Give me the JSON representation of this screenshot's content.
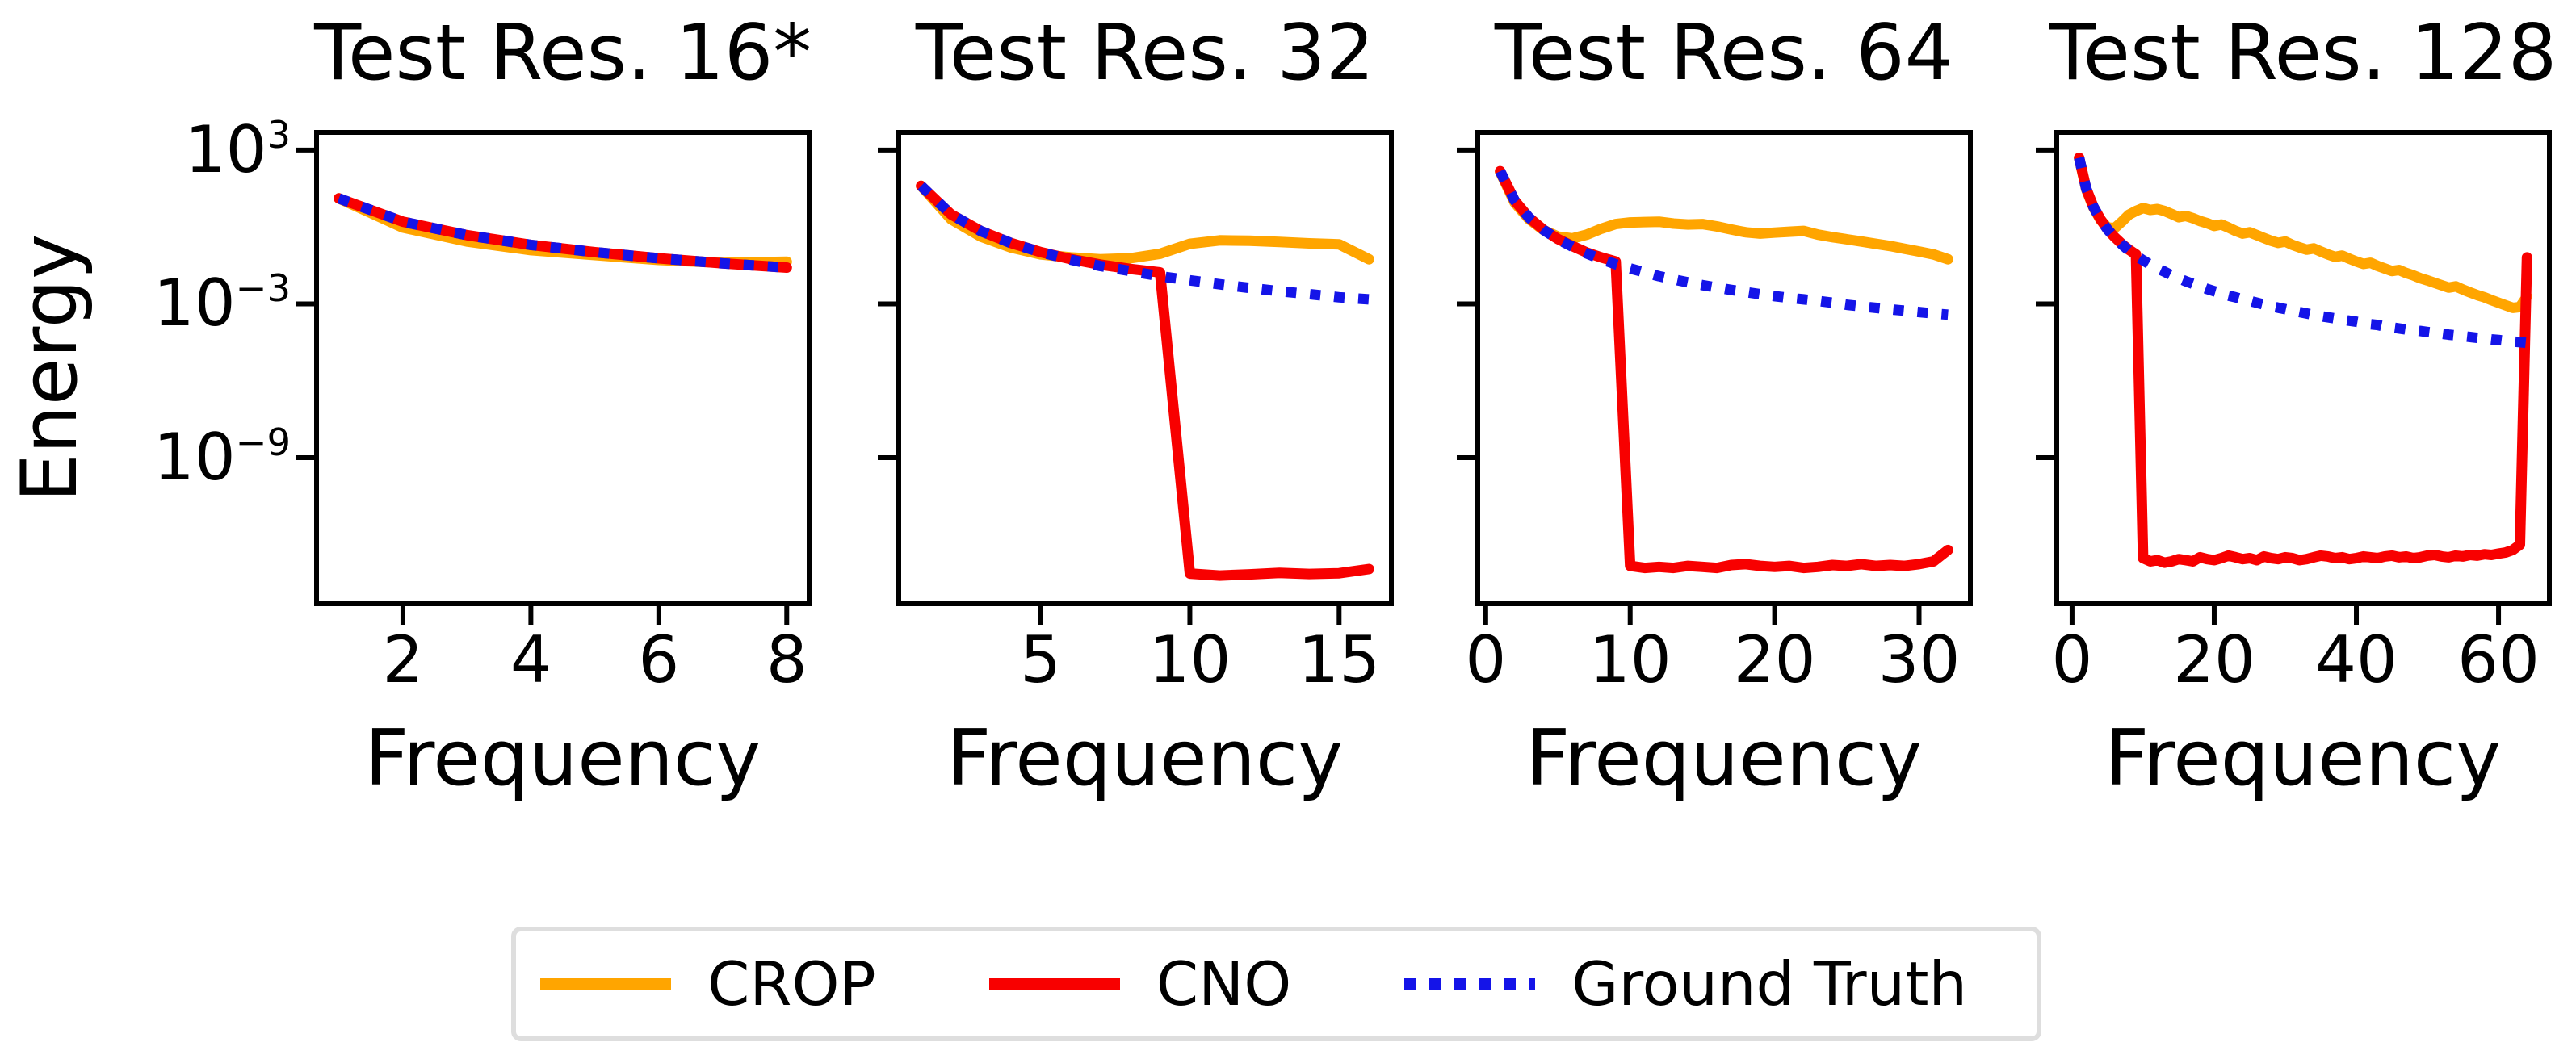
{
  "figure": {
    "ylabel": "Energy",
    "xlabel": "Frequency",
    "background_color": "#ffffff",
    "axis_color": "#000000"
  },
  "colors": {
    "crop": "#ffa500",
    "cno": "#f80000",
    "ground_truth": "#1414e8",
    "legend_border": "#dedede"
  },
  "legend": {
    "position": "lower center",
    "items": [
      {
        "label": "CROP",
        "color": "#ffa500",
        "dash": "solid"
      },
      {
        "label": "CNO",
        "color": "#f80000",
        "dash": "solid"
      },
      {
        "label": "Ground Truth",
        "color": "#1414e8",
        "dash": "dotted"
      }
    ]
  },
  "chart_data": [
    {
      "type": "line",
      "title": "Test Res. 16*",
      "xlabel": "Frequency",
      "ylabel": "Energy",
      "y_scale": "log",
      "grid": false,
      "xlim": [
        0.65,
        8.35
      ],
      "ylim_log10": [
        -14.7,
        3.69
      ],
      "xticks": [
        2,
        4,
        6,
        8
      ],
      "ytick_exponents": [
        3,
        -3,
        -9
      ],
      "x": [
        1,
        2,
        3,
        4,
        5,
        6,
        7,
        8
      ],
      "series": [
        {
          "name": "CROP",
          "style": "solid",
          "values": [
            13,
            0.95,
            0.27,
            0.125,
            0.08,
            0.052,
            0.04,
            0.044
          ]
        },
        {
          "name": "CNO",
          "style": "solid",
          "values": [
            13,
            1.6,
            0.48,
            0.2,
            0.104,
            0.06,
            0.038,
            0.026
          ]
        },
        {
          "name": "Ground Truth",
          "style": "dotted",
          "values": [
            13,
            1.6,
            0.48,
            0.2,
            0.104,
            0.06,
            0.038,
            0.026
          ]
        }
      ]
    },
    {
      "type": "line",
      "title": "Test Res. 32",
      "xlabel": "Frequency",
      "ylabel": "Energy",
      "y_scale": "log",
      "grid": false,
      "xlim": [
        0.25,
        16.75
      ],
      "ylim_log10": [
        -14.7,
        3.69
      ],
      "xticks": [
        5,
        10,
        15
      ],
      "ytick_exponents": [
        3,
        -3,
        -9
      ],
      "x": [
        1,
        2,
        3,
        4,
        5,
        6,
        7,
        8,
        9,
        10,
        11,
        12,
        13,
        14,
        15,
        16
      ],
      "series": [
        {
          "name": "CROP",
          "style": "solid",
          "values": [
            40,
            2.0,
            0.42,
            0.16,
            0.085,
            0.065,
            0.055,
            0.06,
            0.09,
            0.22,
            0.3,
            0.29,
            0.26,
            0.23,
            0.21,
            0.055
          ]
        },
        {
          "name": "CNO",
          "style": "solid",
          "values": [
            40,
            3.1,
            0.69,
            0.24,
            0.105,
            0.056,
            0.034,
            0.023,
            0.017,
            3e-14,
            2.5e-14,
            2.8e-14,
            3.2e-14,
            2.9e-14,
            3.1e-14,
            4.5e-14
          ]
        },
        {
          "name": "Ground Truth",
          "style": "dotted",
          "values": [
            40,
            3.1,
            0.69,
            0.237,
            0.103,
            0.053,
            0.03,
            0.019,
            0.012,
            0.0083,
            0.0058,
            0.0042,
            0.0031,
            0.0024,
            0.0018,
            0.0015
          ]
        }
      ]
    },
    {
      "type": "line",
      "title": "Test Res. 64",
      "xlabel": "Frequency",
      "ylabel": "Energy",
      "y_scale": "log",
      "grid": false,
      "xlim": [
        -0.55,
        33.55
      ],
      "ylim_log10": [
        -14.7,
        3.69
      ],
      "xticks": [
        0,
        10,
        20,
        30
      ],
      "ytick_exponents": [
        3,
        -3,
        -9
      ],
      "x": [
        1,
        2,
        3,
        4,
        5,
        6,
        7,
        8,
        9,
        10,
        11,
        12,
        13,
        14,
        15,
        16,
        17,
        18,
        19,
        20,
        21,
        22,
        23,
        24,
        25,
        26,
        27,
        28,
        29,
        30,
        31,
        32
      ],
      "series": [
        {
          "name": "CROP",
          "style": "solid",
          "values": [
            140,
            9.0,
            2.0,
            0.75,
            0.42,
            0.36,
            0.5,
            0.85,
            1.3,
            1.5,
            1.55,
            1.6,
            1.35,
            1.25,
            1.3,
            1.05,
            0.8,
            0.62,
            0.55,
            0.6,
            0.65,
            0.7,
            0.5,
            0.4,
            0.33,
            0.27,
            0.22,
            0.18,
            0.14,
            0.11,
            0.085,
            0.055
          ]
        },
        {
          "name": "CNO",
          "style": "solid",
          "values": [
            150,
            10.8,
            2.3,
            0.78,
            0.34,
            0.18,
            0.1,
            0.065,
            0.045,
            6e-14,
            5e-14,
            5.5e-14,
            5e-14,
            6e-14,
            5.5e-14,
            5e-14,
            6.5e-14,
            7e-14,
            6e-14,
            5.5e-14,
            6e-14,
            5e-14,
            5.5e-14,
            6.5e-14,
            6e-14,
            7e-14,
            6e-14,
            6.5e-14,
            6e-14,
            7e-14,
            9e-14,
            2.5e-13
          ]
        },
        {
          "name": "Ground Truth",
          "style": "dotted",
          "values": [
            150,
            10.8,
            2.3,
            0.77,
            0.33,
            0.17,
            0.092,
            0.055,
            0.035,
            0.024,
            0.017,
            0.012,
            0.009,
            0.0069,
            0.0054,
            0.0043,
            0.0035,
            0.0029,
            0.0024,
            0.002,
            0.0017,
            0.0015,
            0.0013,
            0.0011,
            0.00092,
            0.0008,
            0.0007,
            0.00061,
            0.00054,
            0.00048,
            0.00042,
            0.00038
          ]
        }
      ]
    },
    {
      "type": "line",
      "title": "Test Res. 128",
      "xlabel": "Frequency",
      "ylabel": "Energy",
      "y_scale": "log",
      "grid": false,
      "xlim": [
        -2.15,
        67.15
      ],
      "ylim_log10": [
        -14.7,
        3.69
      ],
      "xticks": [
        0,
        20,
        40,
        60
      ],
      "ytick_exponents": [
        3,
        -3,
        -9
      ],
      "x": [
        1,
        2,
        3,
        4,
        5,
        6,
        7,
        8,
        9,
        10,
        11,
        12,
        13,
        14,
        15,
        16,
        17,
        18,
        19,
        20,
        21,
        22,
        23,
        24,
        25,
        26,
        27,
        28,
        29,
        30,
        31,
        32,
        33,
        34,
        35,
        36,
        37,
        38,
        39,
        40,
        41,
        42,
        43,
        44,
        45,
        46,
        47,
        48,
        49,
        50,
        51,
        52,
        53,
        54,
        55,
        56,
        57,
        58,
        59,
        60,
        61,
        62,
        63,
        64
      ],
      "series": [
        {
          "name": "CROP",
          "style": "solid",
          "values": [
            480,
            29,
            5.8,
            1.9,
            0.95,
            0.9,
            1.6,
            3.0,
            4.2,
            5.5,
            4.6,
            5.0,
            4.2,
            3.2,
            2.4,
            2.7,
            2.2,
            1.7,
            1.4,
            1.1,
            1.25,
            0.95,
            0.7,
            0.55,
            0.62,
            0.48,
            0.37,
            0.29,
            0.24,
            0.27,
            0.2,
            0.16,
            0.13,
            0.145,
            0.11,
            0.085,
            0.068,
            0.076,
            0.058,
            0.045,
            0.036,
            0.04,
            0.03,
            0.024,
            0.019,
            0.021,
            0.016,
            0.013,
            0.01,
            0.0082,
            0.0066,
            0.0053,
            0.0043,
            0.0048,
            0.0036,
            0.0028,
            0.0022,
            0.0018,
            0.0014,
            0.0011,
            0.00088,
            0.0007,
            0.00075,
            0.0019
          ]
        },
        {
          "name": "CNO",
          "style": "solid",
          "values": [
            500,
            31,
            6.2,
            2.0,
            0.8,
            0.4,
            0.22,
            0.13,
            0.085,
            1.2e-13,
            9e-14,
            1e-13,
            8e-14,
            9e-14,
            1.1e-13,
            1e-13,
            9e-14,
            1.3e-13,
            1.1e-13,
            1e-13,
            1.2e-13,
            1.5e-13,
            1.3e-13,
            1.1e-13,
            1.2e-13,
            1e-13,
            1.4e-13,
            1.2e-13,
            1.1e-13,
            1.3e-13,
            1.2e-13,
            1e-13,
            1.1e-13,
            1.3e-13,
            1.5e-13,
            1.4e-13,
            1.2e-13,
            1.3e-13,
            1.1e-13,
            1.2e-13,
            1.4e-13,
            1.3e-13,
            1.2e-13,
            1.4e-13,
            1.5e-13,
            1.3e-13,
            1.4e-13,
            1.2e-13,
            1.3e-13,
            1.5e-13,
            1.6e-13,
            1.4e-13,
            1.3e-13,
            1.5e-13,
            1.4e-13,
            1.6e-13,
            1.5e-13,
            1.7e-13,
            1.6e-13,
            1.8e-13,
            2e-13,
            2.5e-13,
            4e-13,
            0.065
          ]
        },
        {
          "name": "Ground Truth",
          "style": "dotted",
          "values": [
            500,
            31,
            6.2,
            2.0,
            0.8,
            0.39,
            0.21,
            0.12,
            0.076,
            0.05,
            0.034,
            0.024,
            0.018,
            0.013,
            0.0099,
            0.0076,
            0.006,
            0.0048,
            0.0038,
            0.0031,
            0.0026,
            0.0021,
            0.0018,
            0.0015,
            0.0013,
            0.0011,
            0.00094,
            0.00081,
            0.00071,
            0.00062,
            0.00054,
            0.00048,
            0.00042,
            0.00037,
            0.00033,
            0.0003,
            0.00027,
            0.00024,
            0.00022,
            0.0002,
            0.00018,
            0.00016,
            0.00015,
            0.00013,
            0.00012,
            0.00011,
            0.0001,
            9.4e-05,
            8.7e-05,
            8e-05,
            7.4e-05,
            6.8e-05,
            6.3e-05,
            5.9e-05,
            5.5e-05,
            5.1e-05,
            4.7e-05,
            4.4e-05,
            4.1e-05,
            3.9e-05,
            3.6e-05,
            3.4e-05,
            3.2e-05,
            3e-05
          ]
        }
      ]
    }
  ]
}
